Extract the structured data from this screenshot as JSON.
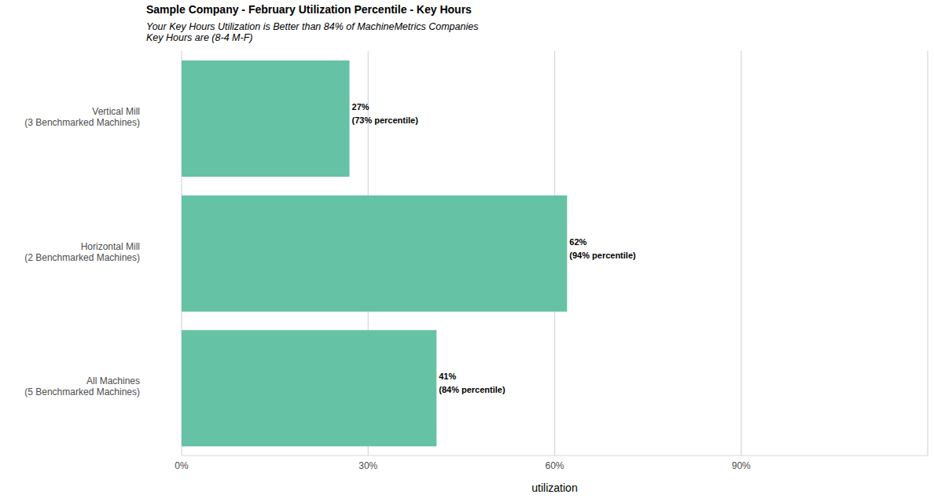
{
  "chart_data": {
    "type": "bar",
    "title": "Sample Company - February Utilization Percentile - Key Hours",
    "subtitle": [
      "Your Key Hours Utilization is Better than 84% of MachineMetrics Companies",
      "Key Hours are (8-4 M-F)"
    ],
    "x_label": "utilization",
    "orientation": "horizontal",
    "categories": [
      "Vertical Mill",
      "Horizontal Mill",
      "All Machines"
    ],
    "category_notes": [
      "(3 Benchmarked Machines)",
      "(2 Benchmarked Machines)",
      "(5 Benchmarked Machines)"
    ],
    "values": [
      27,
      62,
      41
    ],
    "value_labels": [
      "27%",
      "62%",
      "41%"
    ],
    "percentiles": [
      73,
      94,
      84
    ],
    "percentile_labels": [
      "(73% percentile)",
      "(94% percentile)",
      "(84% percentile)"
    ],
    "color": "#66c2a5",
    "xlim": [
      0,
      120
    ],
    "xticks": [
      {
        "value": 0,
        "label": "0%"
      },
      {
        "value": 30,
        "label": "30%"
      },
      {
        "value": 60,
        "label": "60%"
      },
      {
        "value": 90,
        "label": "90%"
      }
    ],
    "grid": true,
    "data_labels": true
  }
}
